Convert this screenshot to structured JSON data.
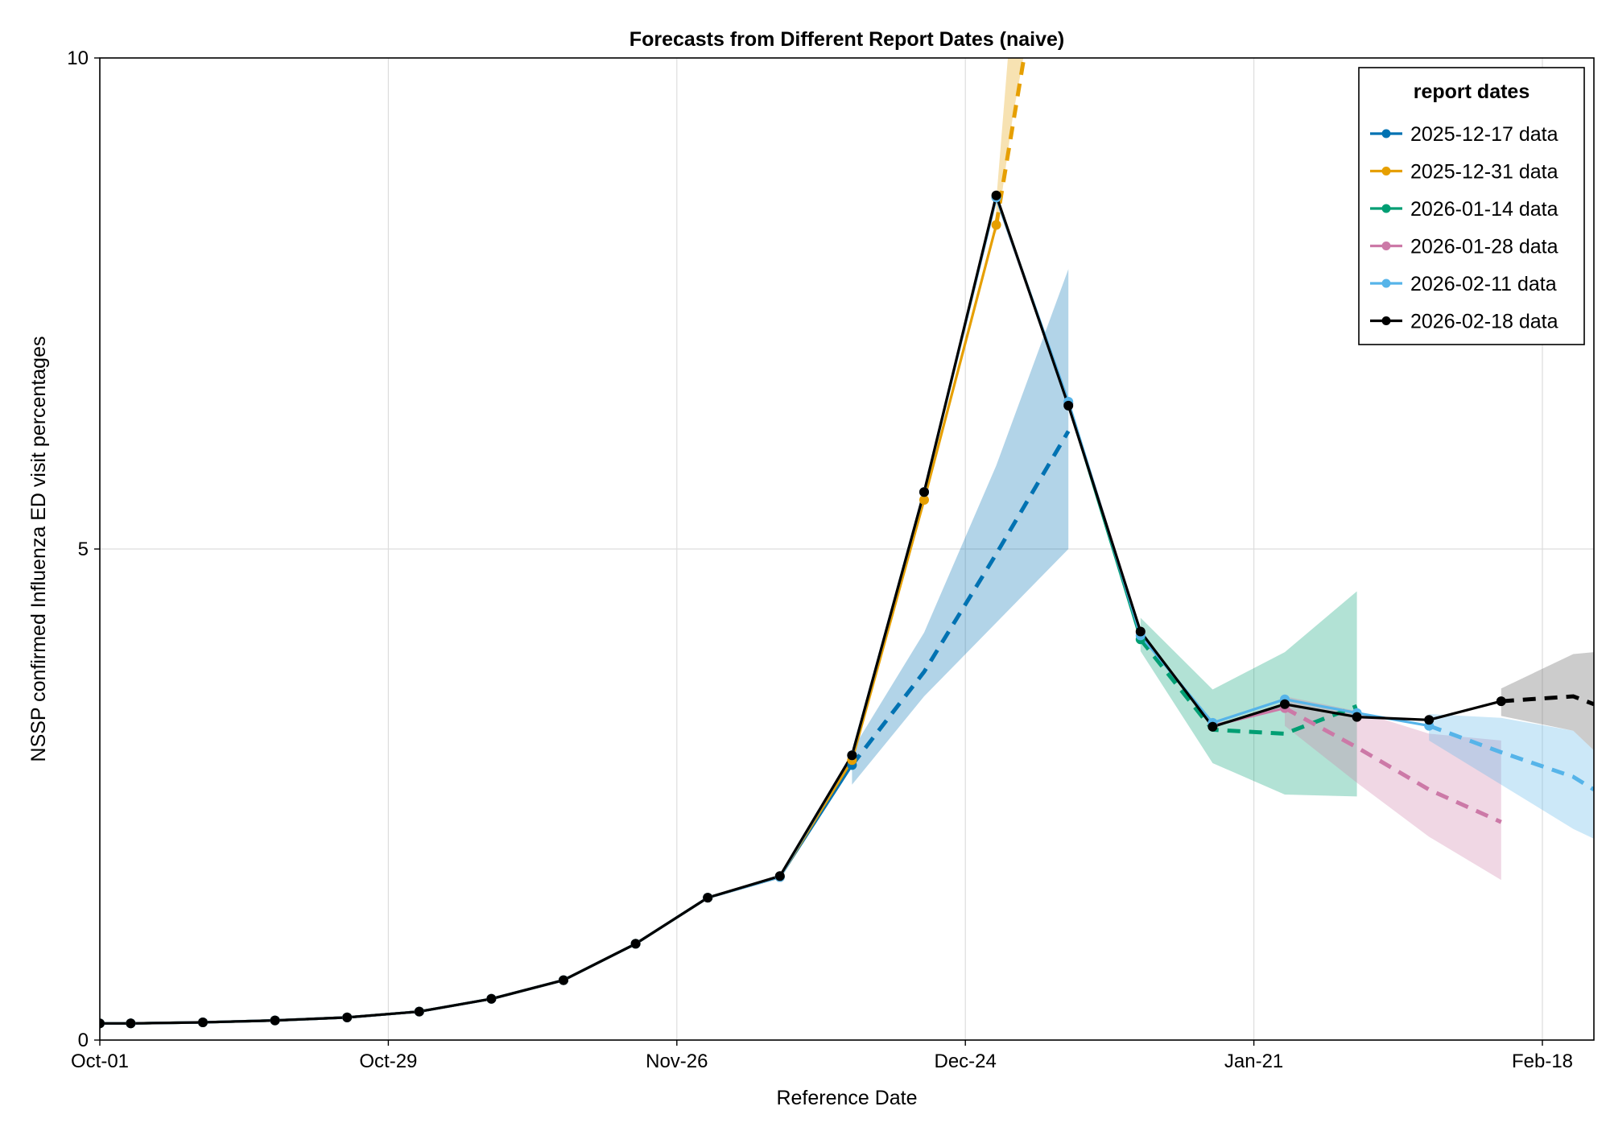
{
  "chart_data": {
    "type": "line",
    "title": "Forecasts from Different Report Dates (naive)",
    "xlabel": "Reference Date",
    "ylabel": "NSSP confirmed Influenza ED visit percentages",
    "x_range_days": [
      0,
      145
    ],
    "ylim": [
      0,
      10
    ],
    "x_ticks": [
      {
        "day": 0,
        "label": "Oct-01"
      },
      {
        "day": 28,
        "label": "Oct-29"
      },
      {
        "day": 56,
        "label": "Nov-26"
      },
      {
        "day": 84,
        "label": "Dec-24"
      },
      {
        "day": 112,
        "label": "Jan-21"
      },
      {
        "day": 140,
        "label": "Feb-18"
      }
    ],
    "y_ticks": [
      {
        "value": 0,
        "label": "0"
      },
      {
        "value": 5,
        "label": "5"
      },
      {
        "value": 10,
        "label": "10"
      }
    ],
    "grid": true,
    "legend": {
      "title": "report dates",
      "position": "top-right"
    },
    "series": [
      {
        "name": "2025-12-17 data",
        "color": "#0072b2",
        "observed": [
          {
            "day": 0,
            "y": 0.17
          },
          {
            "day": 3,
            "y": 0.17
          },
          {
            "day": 10,
            "y": 0.18
          },
          {
            "day": 17,
            "y": 0.2
          },
          {
            "day": 24,
            "y": 0.23
          },
          {
            "day": 31,
            "y": 0.29
          },
          {
            "day": 38,
            "y": 0.42
          },
          {
            "day": 45,
            "y": 0.61
          },
          {
            "day": 52,
            "y": 0.98
          },
          {
            "day": 59,
            "y": 1.45
          },
          {
            "day": 66,
            "y": 1.66
          },
          {
            "day": 73,
            "y": 2.8
          }
        ],
        "forecast": [
          {
            "day": 73,
            "y": 2.8
          },
          {
            "day": 80,
            "y": 3.75
          },
          {
            "day": 87,
            "y": 4.95
          },
          {
            "day": 94,
            "y": 6.2
          }
        ],
        "band_lower": [
          {
            "day": 73,
            "y": 2.6
          },
          {
            "day": 80,
            "y": 3.5
          },
          {
            "day": 87,
            "y": 4.25
          },
          {
            "day": 94,
            "y": 5.0
          }
        ],
        "band_upper": [
          {
            "day": 73,
            "y": 2.95
          },
          {
            "day": 80,
            "y": 4.15
          },
          {
            "day": 87,
            "y": 5.85
          },
          {
            "day": 94,
            "y": 7.85
          }
        ],
        "band_color": "#0072b2"
      },
      {
        "name": "2025-12-31 data",
        "color": "#e69f00",
        "observed": [
          {
            "day": 0,
            "y": 0.17
          },
          {
            "day": 3,
            "y": 0.17
          },
          {
            "day": 10,
            "y": 0.18
          },
          {
            "day": 17,
            "y": 0.2
          },
          {
            "day": 24,
            "y": 0.23
          },
          {
            "day": 31,
            "y": 0.29
          },
          {
            "day": 38,
            "y": 0.42
          },
          {
            "day": 45,
            "y": 0.61
          },
          {
            "day": 52,
            "y": 0.98
          },
          {
            "day": 59,
            "y": 1.45
          },
          {
            "day": 66,
            "y": 1.66
          },
          {
            "day": 73,
            "y": 2.85
          },
          {
            "day": 80,
            "y": 5.5
          },
          {
            "day": 87,
            "y": 8.3
          }
        ],
        "forecast": [
          {
            "day": 87,
            "y": 8.3
          },
          {
            "day": 90,
            "y": 10.2
          }
        ],
        "band_lower": [
          {
            "day": 87,
            "y": 8.2
          },
          {
            "day": 88.6,
            "y": 9.4
          },
          {
            "day": 89.8,
            "y": 10.1
          }
        ],
        "band_upper": [
          {
            "day": 87,
            "y": 8.55
          },
          {
            "day": 88.2,
            "y": 10.1
          }
        ],
        "band_color": "#e69f00"
      },
      {
        "name": "2026-01-14 data",
        "color": "#009e73",
        "observed": [
          {
            "day": 0,
            "y": 0.17
          },
          {
            "day": 3,
            "y": 0.17
          },
          {
            "day": 10,
            "y": 0.18
          },
          {
            "day": 17,
            "y": 0.2
          },
          {
            "day": 24,
            "y": 0.23
          },
          {
            "day": 31,
            "y": 0.29
          },
          {
            "day": 38,
            "y": 0.42
          },
          {
            "day": 45,
            "y": 0.61
          },
          {
            "day": 52,
            "y": 0.98
          },
          {
            "day": 59,
            "y": 1.45
          },
          {
            "day": 66,
            "y": 1.66
          },
          {
            "day": 73,
            "y": 2.9
          },
          {
            "day": 80,
            "y": 5.58
          },
          {
            "day": 87,
            "y": 8.58
          },
          {
            "day": 94,
            "y": 6.48
          },
          {
            "day": 101,
            "y": 4.08
          }
        ],
        "forecast": [
          {
            "day": 101,
            "y": 4.08
          },
          {
            "day": 108,
            "y": 3.16
          },
          {
            "day": 115,
            "y": 3.12
          },
          {
            "day": 122,
            "y": 3.4
          }
        ],
        "band_lower": [
          {
            "day": 101,
            "y": 3.96
          },
          {
            "day": 108,
            "y": 2.82
          },
          {
            "day": 115,
            "y": 2.5
          },
          {
            "day": 122,
            "y": 2.48
          }
        ],
        "band_upper": [
          {
            "day": 101,
            "y": 4.3
          },
          {
            "day": 108,
            "y": 3.57
          },
          {
            "day": 115,
            "y": 3.95
          },
          {
            "day": 122,
            "y": 4.57
          }
        ],
        "band_color": "#009e73"
      },
      {
        "name": "2026-01-28 data",
        "color": "#cc79a7",
        "observed": [
          {
            "day": 0,
            "y": 0.17
          },
          {
            "day": 3,
            "y": 0.17
          },
          {
            "day": 10,
            "y": 0.18
          },
          {
            "day": 17,
            "y": 0.2
          },
          {
            "day": 24,
            "y": 0.23
          },
          {
            "day": 31,
            "y": 0.29
          },
          {
            "day": 38,
            "y": 0.42
          },
          {
            "day": 45,
            "y": 0.61
          },
          {
            "day": 52,
            "y": 0.98
          },
          {
            "day": 59,
            "y": 1.45
          },
          {
            "day": 66,
            "y": 1.66
          },
          {
            "day": 73,
            "y": 2.9
          },
          {
            "day": 80,
            "y": 5.58
          },
          {
            "day": 87,
            "y": 8.58
          },
          {
            "day": 94,
            "y": 6.48
          },
          {
            "day": 101,
            "y": 4.15
          },
          {
            "day": 108,
            "y": 3.2
          },
          {
            "day": 115,
            "y": 3.38
          }
        ],
        "forecast": [
          {
            "day": 115,
            "y": 3.38
          },
          {
            "day": 122,
            "y": 2.98
          },
          {
            "day": 129,
            "y": 2.55
          },
          {
            "day": 136,
            "y": 2.22
          }
        ],
        "band_lower": [
          {
            "day": 115,
            "y": 3.2
          },
          {
            "day": 122,
            "y": 2.62
          },
          {
            "day": 129,
            "y": 2.07
          },
          {
            "day": 136,
            "y": 1.63
          }
        ],
        "band_upper": [
          {
            "day": 115,
            "y": 3.5
          },
          {
            "day": 122,
            "y": 3.35
          },
          {
            "day": 129,
            "y": 3.12
          },
          {
            "day": 136,
            "y": 3.05
          }
        ],
        "band_color": "#cc79a7"
      },
      {
        "name": "2026-02-11 data",
        "color": "#56b4e9",
        "observed": [
          {
            "day": 0,
            "y": 0.17
          },
          {
            "day": 3,
            "y": 0.17
          },
          {
            "day": 10,
            "y": 0.18
          },
          {
            "day": 17,
            "y": 0.2
          },
          {
            "day": 24,
            "y": 0.23
          },
          {
            "day": 31,
            "y": 0.29
          },
          {
            "day": 38,
            "y": 0.42
          },
          {
            "day": 45,
            "y": 0.61
          },
          {
            "day": 52,
            "y": 0.98
          },
          {
            "day": 59,
            "y": 1.45
          },
          {
            "day": 66,
            "y": 1.66
          },
          {
            "day": 73,
            "y": 2.9
          },
          {
            "day": 80,
            "y": 5.58
          },
          {
            "day": 87,
            "y": 8.58
          },
          {
            "day": 94,
            "y": 6.5
          },
          {
            "day": 101,
            "y": 4.12
          },
          {
            "day": 108,
            "y": 3.23
          },
          {
            "day": 115,
            "y": 3.47
          },
          {
            "day": 122,
            "y": 3.33
          },
          {
            "day": 129,
            "y": 3.2
          }
        ],
        "forecast": [
          {
            "day": 129,
            "y": 3.2
          },
          {
            "day": 136,
            "y": 2.93
          },
          {
            "day": 143,
            "y": 2.68
          },
          {
            "day": 145,
            "y": 2.55
          }
        ],
        "band_lower": [
          {
            "day": 129,
            "y": 3.05
          },
          {
            "day": 136,
            "y": 2.6
          },
          {
            "day": 143,
            "y": 2.15
          },
          {
            "day": 145,
            "y": 2.05
          }
        ],
        "band_upper": [
          {
            "day": 129,
            "y": 3.32
          },
          {
            "day": 136,
            "y": 3.28
          },
          {
            "day": 143,
            "y": 3.15
          },
          {
            "day": 145,
            "y": 2.95
          }
        ],
        "band_color": "#56b4e9"
      },
      {
        "name": "2026-02-18 data",
        "color": "#000000",
        "observed": [
          {
            "day": 0,
            "y": 0.17
          },
          {
            "day": 3,
            "y": 0.17
          },
          {
            "day": 10,
            "y": 0.18
          },
          {
            "day": 17,
            "y": 0.2
          },
          {
            "day": 24,
            "y": 0.23
          },
          {
            "day": 31,
            "y": 0.29
          },
          {
            "day": 38,
            "y": 0.42
          },
          {
            "day": 45,
            "y": 0.61
          },
          {
            "day": 52,
            "y": 0.98
          },
          {
            "day": 59,
            "y": 1.45
          },
          {
            "day": 66,
            "y": 1.67
          },
          {
            "day": 73,
            "y": 2.9
          },
          {
            "day": 80,
            "y": 5.58
          },
          {
            "day": 87,
            "y": 8.6
          },
          {
            "day": 94,
            "y": 6.46
          },
          {
            "day": 101,
            "y": 4.16
          },
          {
            "day": 108,
            "y": 3.19
          },
          {
            "day": 115,
            "y": 3.42
          },
          {
            "day": 122,
            "y": 3.29
          },
          {
            "day": 129,
            "y": 3.26
          },
          {
            "day": 136,
            "y": 3.45
          }
        ],
        "forecast": [
          {
            "day": 136,
            "y": 3.45
          },
          {
            "day": 143,
            "y": 3.5
          },
          {
            "day": 145,
            "y": 3.42
          }
        ],
        "band_lower": [
          {
            "day": 136,
            "y": 3.3
          },
          {
            "day": 143,
            "y": 3.15
          },
          {
            "day": 145,
            "y": 2.95
          }
        ],
        "band_upper": [
          {
            "day": 136,
            "y": 3.58
          },
          {
            "day": 143,
            "y": 3.93
          },
          {
            "day": 145,
            "y": 3.95
          }
        ],
        "band_color": "#555555"
      }
    ]
  }
}
